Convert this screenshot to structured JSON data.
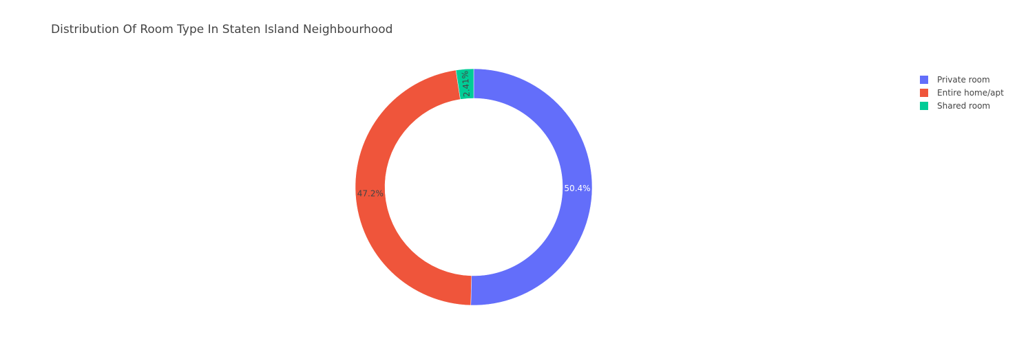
{
  "chart_data": {
    "type": "pie",
    "title": "Distribution Of Room Type In Staten Island Neighbourhood",
    "hole": true,
    "legend_position": "top-right",
    "series": [
      {
        "name": "Private room",
        "value": 50.4,
        "label": "50.4%",
        "color": "#636efa",
        "label_color": "#ffffff"
      },
      {
        "name": "Entire home/apt",
        "value": 47.2,
        "label": "47.2%",
        "color": "#ef553b",
        "label_color": "#444444"
      },
      {
        "name": "Shared room",
        "value": 2.41,
        "label": "2.41%",
        "color": "#00cc96",
        "label_color": "#444444"
      }
    ]
  }
}
